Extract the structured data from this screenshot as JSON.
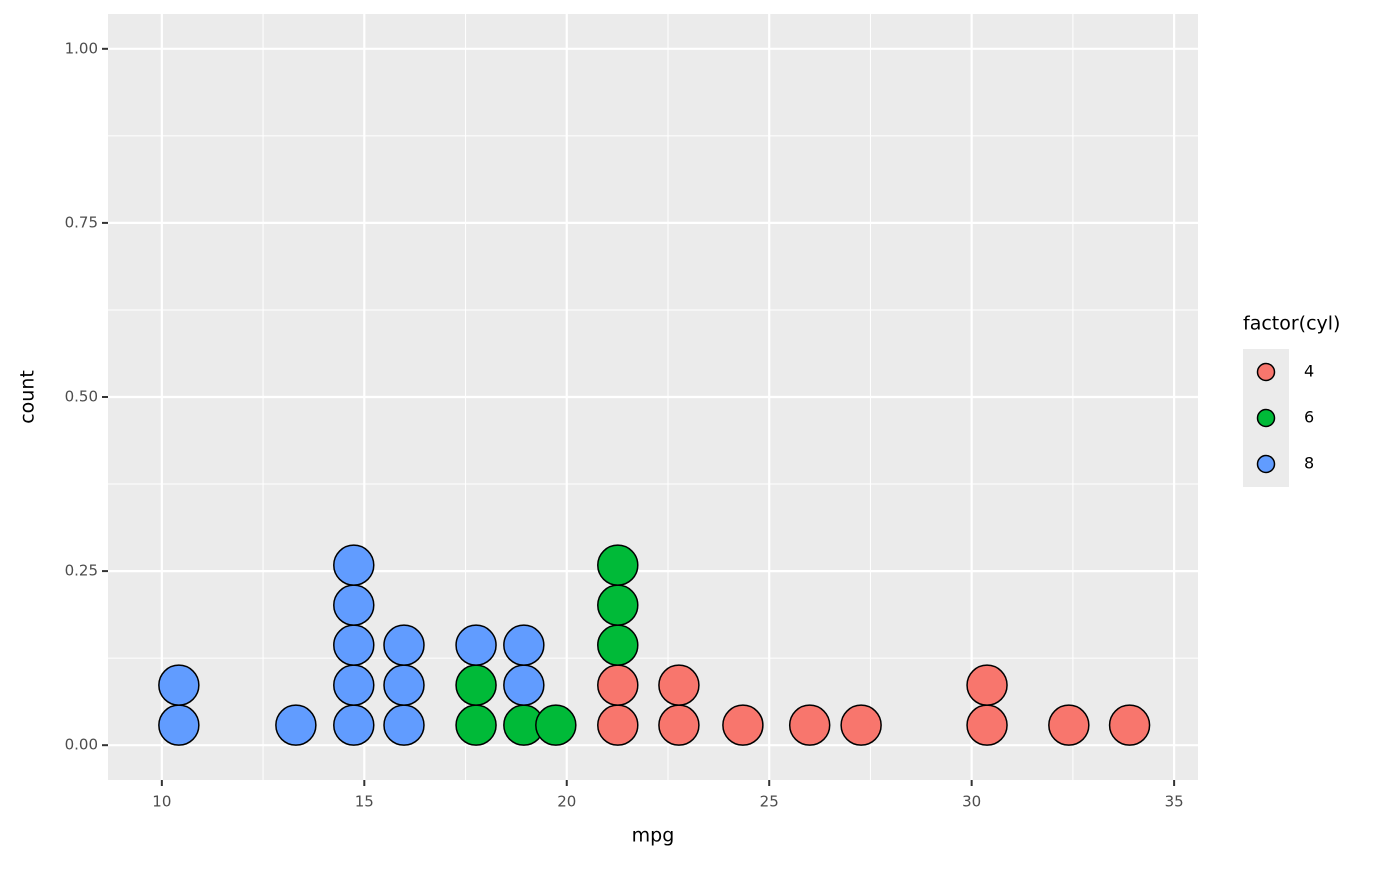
{
  "chart_data": {
    "type": "dotplot",
    "xlabel": "mpg",
    "ylabel": "count",
    "legend_title": "factor(cyl)",
    "xlim": [
      8.67,
      35.59
    ],
    "xticks": [
      10,
      15,
      20,
      25,
      30,
      35
    ],
    "ylim": [
      -0.05,
      1.05
    ],
    "yticks": [
      {
        "value": 0,
        "label": "0.00"
      },
      {
        "value": 0.25,
        "label": "0.25"
      },
      {
        "value": 0.5,
        "label": "0.50"
      },
      {
        "value": 0.75,
        "label": "0.75"
      },
      {
        "value": 1,
        "label": "1.00"
      }
    ],
    "grid": true,
    "legend": "right",
    "series": [
      {
        "name": "4",
        "color": "#f8766d",
        "x": [
          21.26,
          21.26,
          22.77,
          22.77,
          24.35,
          26.0,
          27.27,
          30.38,
          30.38,
          32.4,
          33.9
        ]
      },
      {
        "name": "6",
        "color": "#00ba38",
        "x": [
          17.76,
          17.76,
          18.94,
          19.73,
          21.26,
          21.26,
          21.26
        ]
      },
      {
        "name": "8",
        "color": "#619cff",
        "x": [
          10.42,
          10.42,
          13.31,
          14.74,
          14.74,
          14.74,
          14.74,
          14.74,
          15.98,
          15.98,
          15.98,
          17.76,
          18.94,
          18.94
        ]
      }
    ]
  }
}
